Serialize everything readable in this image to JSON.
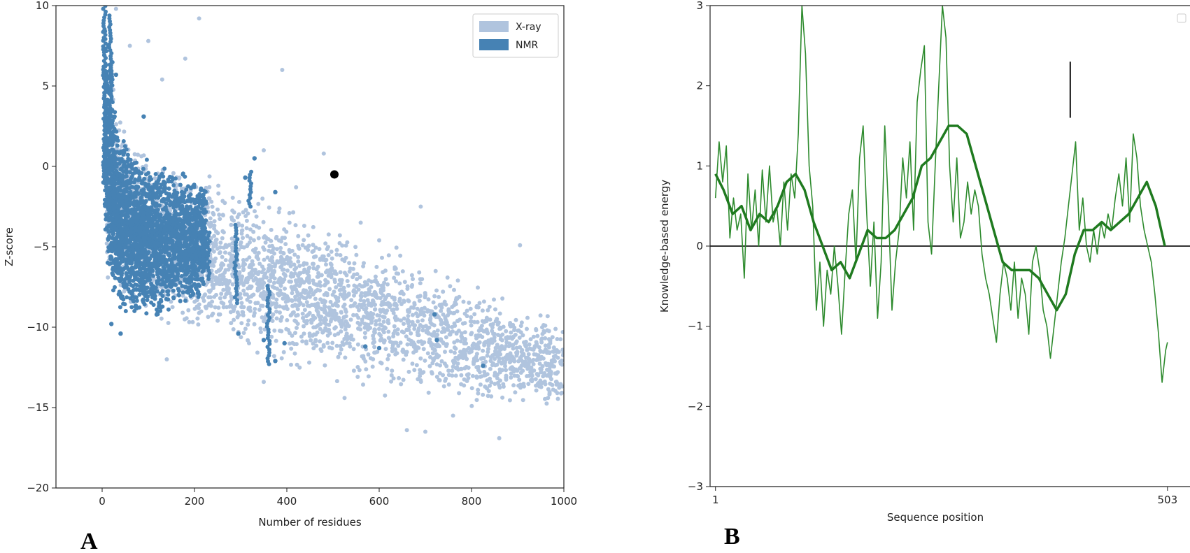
{
  "colors": {
    "xray": "#b0c4de",
    "nmr": "#4682b4",
    "query": "#000000",
    "energy": "#2e8b2e",
    "energy_smooth": "#1f7a1f",
    "axis": "#222222"
  },
  "chart_data": [
    {
      "type": "scatter",
      "panel_label": "A",
      "xlabel": "Number of residues",
      "ylabel": "Z-score",
      "xlim": [
        -100,
        1000
      ],
      "ylim": [
        -20,
        10
      ],
      "xticks": [
        0,
        200,
        400,
        600,
        800,
        1000
      ],
      "xtick_labels": [
        "0",
        "200",
        "400",
        "600",
        "800",
        "1000"
      ],
      "yticks": [
        10,
        5,
        0,
        -5,
        -10,
        -15,
        -20
      ],
      "ytick_labels": [
        "10",
        "5",
        "0",
        "−5",
        "−10",
        "−15",
        "−20"
      ],
      "legend": {
        "position": "top-right",
        "entries": [
          "X-ray",
          "NMR"
        ]
      },
      "series": [
        {
          "name": "X-ray",
          "color": "#b0c4de",
          "band": [
            [
              10,
              7,
              -8
            ],
            [
              50,
              3.5,
              -9.5
            ],
            [
              100,
              2,
              -10.5
            ],
            [
              150,
              1,
              -11
            ],
            [
              200,
              0.5,
              -11.5
            ],
            [
              300,
              -0.5,
              -12.5
            ],
            [
              400,
              -2,
              -13
            ],
            [
              500,
              -3,
              -14
            ],
            [
              600,
              -4,
              -14.5
            ],
            [
              700,
              -5,
              -15
            ],
            [
              800,
              -6.5,
              -15.5
            ],
            [
              900,
              -8,
              -15.5
            ],
            [
              1000,
              -9,
              -16
            ]
          ],
          "outliers": [
            [
              30,
              9.8
            ],
            [
              60,
              7.5
            ],
            [
              100,
              7.8
            ],
            [
              210,
              9.2
            ],
            [
              180,
              6.7
            ],
            [
              130,
              5.4
            ],
            [
              390,
              6
            ],
            [
              350,
              1
            ],
            [
              480,
              0.8
            ],
            [
              420,
              -1.3
            ],
            [
              690,
              -2.5
            ],
            [
              560,
              -3.5
            ],
            [
              600,
              -4.6
            ],
            [
              905,
              -4.9
            ],
            [
              660,
              -16.4
            ],
            [
              700,
              -16.5
            ],
            [
              860,
              -16.9
            ],
            [
              975,
              -13.6
            ],
            [
              760,
              -15.5
            ],
            [
              525,
              -14.4
            ],
            [
              350,
              -13.4
            ],
            [
              140,
              -12
            ]
          ]
        },
        {
          "name": "NMR",
          "color": "#4682b4",
          "band": [
            [
              5,
              10,
              -4
            ],
            [
              15,
              7,
              -8
            ],
            [
              30,
              3,
              -9
            ],
            [
              60,
              1,
              -9.5
            ],
            [
              100,
              0.5,
              -9.5
            ],
            [
              150,
              0,
              -9
            ],
            [
              200,
              -0.5,
              -8.5
            ],
            [
              225,
              -1,
              -8
            ]
          ],
          "points": [
            [
              330,
              0.5
            ],
            [
              310,
              -0.7
            ],
            [
              375,
              -1.6
            ],
            [
              295,
              -10.4
            ],
            [
              395,
              -11
            ],
            [
              570,
              -11.2
            ],
            [
              600,
              -11.3
            ],
            [
              720,
              -9.2
            ],
            [
              725,
              -10.8
            ],
            [
              825,
              -12.4
            ],
            [
              375,
              -12.1
            ],
            [
              350,
              -10.8
            ],
            [
              40,
              -10.4
            ],
            [
              20,
              -9.8
            ],
            [
              90,
              3.1
            ],
            [
              30,
              5.7
            ]
          ],
          "strips": [
            [
              5,
              10,
              -1
            ],
            [
              18,
              9.5,
              2
            ],
            [
              20,
              6.5,
              4.5
            ],
            [
              290,
              -3.5,
              -8.5
            ],
            [
              320,
              -0.2,
              -2.5
            ],
            [
              360,
              -7.4,
              -12.3
            ],
            [
              230,
              -4,
              -7
            ]
          ]
        },
        {
          "name": "query",
          "color": "#000000",
          "points": [
            [
              503,
              -0.5
            ]
          ]
        }
      ]
    },
    {
      "type": "line",
      "panel_label": "B",
      "xlabel": "Sequence position",
      "ylabel": "Knowledge-based energy",
      "xlim": [
        -5,
        528
      ],
      "ylim": [
        -3,
        3
      ],
      "xticks": [
        1,
        503
      ],
      "xtick_labels": [
        "1",
        "503"
      ],
      "yticks": [
        3,
        2,
        1,
        0,
        -1,
        -2,
        -3
      ],
      "ytick_labels": [
        "3",
        "2",
        "1",
        "0",
        "−1",
        "−2",
        "−3"
      ],
      "reference_line": 0,
      "marker_bar": {
        "x": 395,
        "y": [
          2.3,
          1.6
        ]
      },
      "series": [
        {
          "name": "raw",
          "color": "#2e8b2e",
          "x": [
            1,
            5,
            9,
            13,
            17,
            21,
            25,
            29,
            33,
            37,
            41,
            45,
            49,
            53,
            57,
            61,
            65,
            69,
            73,
            77,
            81,
            85,
            89,
            93,
            97,
            101,
            105,
            109,
            113,
            117,
            121,
            125,
            129,
            133,
            137,
            141,
            145,
            149,
            153,
            157,
            161,
            165,
            169,
            173,
            177,
            181,
            185,
            189,
            193,
            197,
            201,
            205,
            209,
            213,
            217,
            221,
            225,
            229,
            233,
            237,
            241,
            245,
            249,
            253,
            257,
            261,
            265,
            269,
            273,
            277,
            281,
            285,
            289,
            293,
            297,
            301,
            305,
            309,
            313,
            317,
            321,
            325,
            329,
            333,
            337,
            341,
            345,
            349,
            353,
            357,
            361,
            365,
            369,
            373,
            377,
            381,
            385,
            389,
            393,
            397,
            401,
            405,
            409,
            413,
            417,
            421,
            425,
            429,
            433,
            437,
            441,
            445,
            449,
            453,
            457,
            461,
            465,
            469,
            473,
            477,
            481,
            485,
            489,
            493,
            497,
            501,
            503
          ],
          "values": [
            0.6,
            1.3,
            0.8,
            1.25,
            0.1,
            0.6,
            0.2,
            0.4,
            -0.4,
            0.9,
            0.2,
            0.7,
            0.0,
            0.95,
            0.3,
            1.0,
            0.3,
            0.5,
            0.0,
            0.8,
            0.2,
            0.9,
            0.6,
            1.4,
            3.0,
            2.4,
            1.0,
            0.5,
            -0.8,
            -0.2,
            -1.0,
            -0.3,
            -0.6,
            0.0,
            -0.5,
            -1.1,
            -0.3,
            0.4,
            0.7,
            -0.2,
            1.1,
            1.5,
            0.4,
            -0.5,
            0.3,
            -0.9,
            -0.2,
            1.5,
            0.5,
            -0.8,
            -0.2,
            0.2,
            1.1,
            0.6,
            1.3,
            0.2,
            1.8,
            2.2,
            2.5,
            0.3,
            -0.1,
            1.0,
            2.0,
            3.0,
            2.6,
            1.0,
            0.3,
            1.1,
            0.1,
            0.3,
            0.8,
            0.4,
            0.7,
            0.5,
            -0.1,
            -0.4,
            -0.6,
            -0.9,
            -1.2,
            -0.6,
            -0.2,
            -0.4,
            -0.8,
            -0.2,
            -0.9,
            -0.4,
            -0.6,
            -1.1,
            -0.2,
            0.0,
            -0.3,
            -0.8,
            -1.0,
            -1.4,
            -1.0,
            -0.6,
            -0.2,
            0.1,
            0.5,
            0.9,
            1.3,
            0.2,
            0.6,
            0.0,
            -0.2,
            0.2,
            -0.1,
            0.3,
            0.1,
            0.4,
            0.2,
            0.6,
            0.9,
            0.5,
            1.1,
            0.3,
            1.4,
            1.1,
            0.5,
            0.2,
            0.0,
            -0.2,
            -0.6,
            -1.1,
            -1.7,
            -1.3,
            -1.2
          ]
        },
        {
          "name": "smoothed",
          "color": "#1f7a1f",
          "x": [
            1,
            10,
            20,
            30,
            40,
            50,
            60,
            70,
            80,
            90,
            100,
            110,
            120,
            130,
            140,
            150,
            160,
            170,
            180,
            190,
            200,
            210,
            220,
            230,
            240,
            250,
            260,
            270,
            280,
            290,
            300,
            310,
            320,
            330,
            340,
            350,
            360,
            370,
            380,
            390,
            400,
            410,
            420,
            430,
            440,
            450,
            460,
            470,
            480,
            490,
            500
          ],
          "values": [
            0.9,
            0.7,
            0.4,
            0.5,
            0.2,
            0.4,
            0.3,
            0.5,
            0.8,
            0.9,
            0.7,
            0.3,
            0.0,
            -0.3,
            -0.2,
            -0.4,
            -0.1,
            0.2,
            0.1,
            0.1,
            0.2,
            0.4,
            0.6,
            1.0,
            1.1,
            1.3,
            1.5,
            1.5,
            1.4,
            1.0,
            0.6,
            0.2,
            -0.2,
            -0.3,
            -0.3,
            -0.3,
            -0.4,
            -0.6,
            -0.8,
            -0.6,
            -0.1,
            0.2,
            0.2,
            0.3,
            0.2,
            0.3,
            0.4,
            0.6,
            0.8,
            0.5,
            0.0
          ]
        }
      ]
    }
  ]
}
